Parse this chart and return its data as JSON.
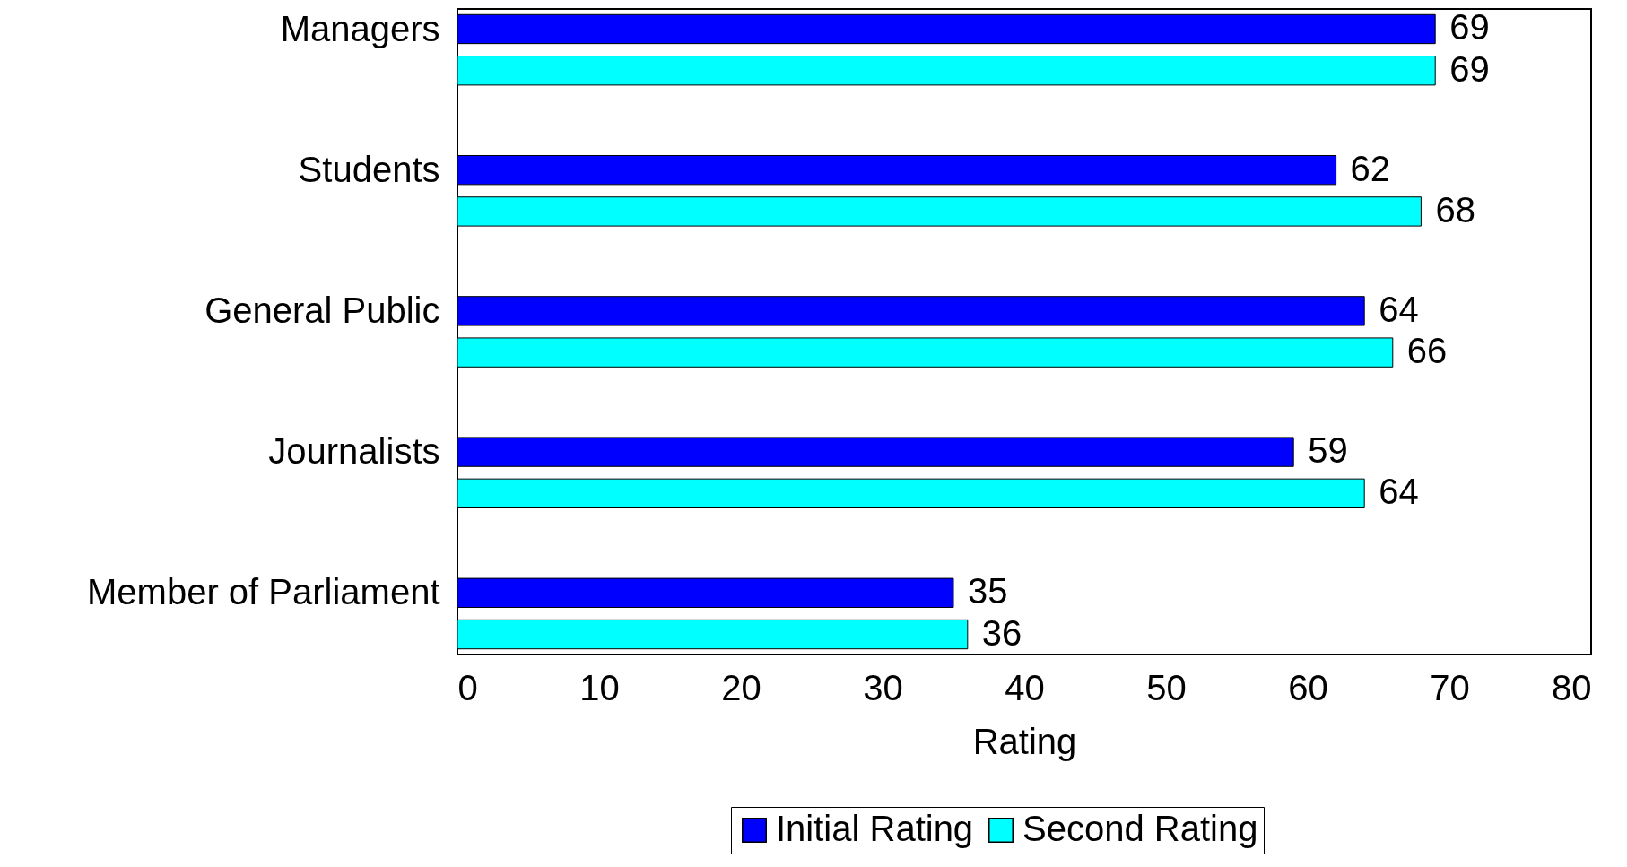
{
  "chart_data": {
    "type": "bar",
    "orientation": "horizontal",
    "xlabel": "Rating",
    "categories": [
      "Managers",
      "Students",
      "General Public",
      "Journalists",
      "Member of Parliament"
    ],
    "series": [
      {
        "name": "Initial Rating",
        "color": "#0000ff",
        "values": [
          69,
          62,
          64,
          59,
          35
        ]
      },
      {
        "name": "Second Rating",
        "color": "#00ffff",
        "values": [
          69,
          68,
          66,
          64,
          36
        ]
      }
    ],
    "xlim": [
      0,
      80
    ],
    "xticks": [
      0,
      10,
      20,
      30,
      40,
      50,
      60,
      70,
      80
    ],
    "data_labels": true,
    "legend": "bottom",
    "grid": false
  }
}
